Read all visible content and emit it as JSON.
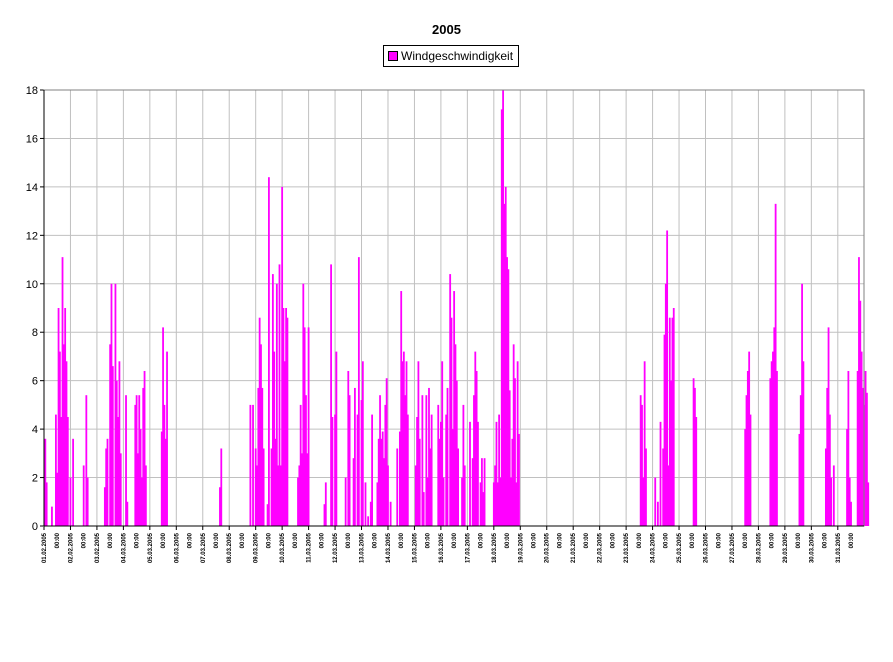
{
  "chart_data": {
    "type": "bar",
    "title": "2005",
    "series": [
      {
        "name": "Windgeschwindigkeit",
        "color": "#ff00ff",
        "points": [
          [
            0.05,
            3.6
          ],
          [
            0.1,
            1.8
          ],
          [
            0.3,
            0.8
          ],
          [
            0.45,
            4.6
          ],
          [
            0.5,
            2.2
          ],
          [
            0.55,
            9.0
          ],
          [
            0.6,
            7.2
          ],
          [
            0.65,
            4.5
          ],
          [
            0.7,
            11.1
          ],
          [
            0.75,
            7.5
          ],
          [
            0.8,
            9.0
          ],
          [
            0.85,
            6.8
          ],
          [
            0.9,
            4.5
          ],
          [
            1.0,
            2.0
          ],
          [
            1.1,
            3.6
          ],
          [
            1.5,
            2.5
          ],
          [
            1.6,
            5.4
          ],
          [
            1.65,
            2.0
          ],
          [
            2.3,
            1.6
          ],
          [
            2.35,
            3.2
          ],
          [
            2.4,
            3.6
          ],
          [
            2.5,
            7.5
          ],
          [
            2.55,
            10.0
          ],
          [
            2.6,
            6.6
          ],
          [
            2.7,
            10.0
          ],
          [
            2.75,
            6.0
          ],
          [
            2.8,
            4.5
          ],
          [
            2.85,
            6.8
          ],
          [
            2.9,
            3.0
          ],
          [
            3.1,
            5.4
          ],
          [
            3.15,
            1.0
          ],
          [
            3.45,
            5.0
          ],
          [
            3.5,
            5.4
          ],
          [
            3.55,
            3.0
          ],
          [
            3.6,
            5.4
          ],
          [
            3.65,
            4.0
          ],
          [
            3.7,
            2.0
          ],
          [
            3.75,
            5.7
          ],
          [
            3.8,
            6.4
          ],
          [
            3.85,
            2.5
          ],
          [
            4.45,
            3.9
          ],
          [
            4.5,
            8.2
          ],
          [
            4.55,
            5.0
          ],
          [
            4.6,
            3.6
          ],
          [
            4.65,
            7.2
          ],
          [
            6.65,
            1.6
          ],
          [
            6.7,
            3.2
          ],
          [
            7.8,
            5.0
          ],
          [
            7.9,
            5.0
          ],
          [
            8.0,
            3.2
          ],
          [
            8.05,
            2.5
          ],
          [
            8.1,
            5.7
          ],
          [
            8.15,
            8.6
          ],
          [
            8.2,
            7.5
          ],
          [
            8.25,
            5.7
          ],
          [
            8.3,
            3.2
          ],
          [
            8.45,
            0.9
          ],
          [
            8.5,
            14.4
          ],
          [
            8.6,
            3.2
          ],
          [
            8.65,
            10.4
          ],
          [
            8.7,
            7.2
          ],
          [
            8.75,
            3.6
          ],
          [
            8.8,
            10.0
          ],
          [
            8.85,
            2.5
          ],
          [
            8.9,
            10.8
          ],
          [
            8.95,
            2.5
          ],
          [
            9.0,
            14.0
          ],
          [
            9.05,
            9.0
          ],
          [
            9.1,
            6.8
          ],
          [
            9.15,
            9.0
          ],
          [
            9.2,
            8.6
          ],
          [
            9.6,
            2.0
          ],
          [
            9.65,
            2.5
          ],
          [
            9.7,
            5.0
          ],
          [
            9.75,
            3.0
          ],
          [
            9.8,
            10.0
          ],
          [
            9.85,
            8.2
          ],
          [
            9.9,
            5.4
          ],
          [
            9.95,
            3.0
          ],
          [
            10.0,
            8.2
          ],
          [
            10.6,
            0.9
          ],
          [
            10.65,
            1.8
          ],
          [
            10.85,
            10.8
          ],
          [
            10.9,
            4.5
          ],
          [
            11.0,
            4.6
          ],
          [
            11.05,
            7.2
          ],
          [
            11.4,
            2.0
          ],
          [
            11.5,
            6.4
          ],
          [
            11.55,
            5.4
          ],
          [
            11.7,
            2.8
          ],
          [
            11.75,
            5.7
          ],
          [
            11.85,
            4.6
          ],
          [
            11.9,
            11.1
          ],
          [
            12.0,
            5.2
          ],
          [
            12.05,
            6.8
          ],
          [
            12.15,
            1.8
          ],
          [
            12.25,
            0.4
          ],
          [
            12.35,
            1.0
          ],
          [
            12.4,
            4.6
          ],
          [
            12.6,
            1.8
          ],
          [
            12.65,
            3.6
          ],
          [
            12.7,
            5.4
          ],
          [
            12.75,
            3.6
          ],
          [
            12.8,
            3.9
          ],
          [
            12.85,
            2.8
          ],
          [
            12.9,
            5.0
          ],
          [
            12.95,
            6.1
          ],
          [
            13.0,
            2.5
          ],
          [
            13.1,
            1.0
          ],
          [
            13.35,
            3.2
          ],
          [
            13.45,
            3.9
          ],
          [
            13.5,
            9.7
          ],
          [
            13.55,
            6.8
          ],
          [
            13.6,
            7.2
          ],
          [
            13.65,
            5.4
          ],
          [
            13.7,
            6.8
          ],
          [
            13.75,
            4.6
          ],
          [
            14.05,
            2.5
          ],
          [
            14.1,
            4.5
          ],
          [
            14.15,
            6.8
          ],
          [
            14.2,
            3.6
          ],
          [
            14.3,
            5.4
          ],
          [
            14.35,
            1.4
          ],
          [
            14.45,
            5.4
          ],
          [
            14.5,
            2.0
          ],
          [
            14.55,
            5.7
          ],
          [
            14.6,
            3.2
          ],
          [
            14.65,
            4.6
          ],
          [
            14.9,
            5.0
          ],
          [
            14.95,
            3.6
          ],
          [
            15.0,
            4.3
          ],
          [
            15.05,
            6.8
          ],
          [
            15.1,
            2.0
          ],
          [
            15.2,
            4.6
          ],
          [
            15.25,
            5.7
          ],
          [
            15.35,
            10.4
          ],
          [
            15.4,
            8.6
          ],
          [
            15.45,
            4.0
          ],
          [
            15.5,
            9.7
          ],
          [
            15.55,
            7.5
          ],
          [
            15.6,
            6.0
          ],
          [
            15.65,
            3.2
          ],
          [
            15.8,
            2.0
          ],
          [
            15.85,
            5.0
          ],
          [
            15.9,
            2.5
          ],
          [
            16.1,
            4.3
          ],
          [
            16.2,
            2.8
          ],
          [
            16.25,
            5.4
          ],
          [
            16.3,
            7.2
          ],
          [
            16.35,
            6.4
          ],
          [
            16.4,
            4.3
          ],
          [
            16.5,
            1.8
          ],
          [
            16.55,
            2.8
          ],
          [
            16.6,
            1.4
          ],
          [
            16.65,
            2.8
          ],
          [
            17.0,
            1.8
          ],
          [
            17.05,
            2.5
          ],
          [
            17.1,
            4.3
          ],
          [
            17.15,
            1.8
          ],
          [
            17.2,
            4.6
          ],
          [
            17.25,
            2.0
          ],
          [
            17.3,
            17.2
          ],
          [
            17.35,
            18.0
          ],
          [
            17.4,
            13.3
          ],
          [
            17.45,
            14.0
          ],
          [
            17.5,
            11.1
          ],
          [
            17.55,
            10.6
          ],
          [
            17.6,
            5.6
          ],
          [
            17.65,
            2.0
          ],
          [
            17.7,
            3.6
          ],
          [
            17.75,
            7.5
          ],
          [
            17.8,
            6.1
          ],
          [
            17.85,
            1.8
          ],
          [
            17.9,
            6.8
          ],
          [
            17.95,
            3.8
          ],
          [
            22.55,
            5.4
          ],
          [
            22.6,
            5.0
          ],
          [
            22.65,
            2.0
          ],
          [
            22.7,
            6.8
          ],
          [
            22.75,
            3.2
          ],
          [
            23.1,
            2.0
          ],
          [
            23.2,
            1.0
          ],
          [
            23.3,
            4.3
          ],
          [
            23.4,
            3.2
          ],
          [
            23.45,
            7.9
          ],
          [
            23.5,
            10.0
          ],
          [
            23.55,
            12.2
          ],
          [
            23.6,
            2.5
          ],
          [
            23.65,
            8.6
          ],
          [
            23.7,
            6.0
          ],
          [
            23.75,
            8.6
          ],
          [
            23.8,
            9.0
          ],
          [
            24.55,
            6.1
          ],
          [
            24.6,
            5.7
          ],
          [
            24.65,
            4.5
          ],
          [
            26.5,
            4.0
          ],
          [
            26.55,
            5.4
          ],
          [
            26.6,
            6.4
          ],
          [
            26.65,
            7.2
          ],
          [
            26.7,
            4.6
          ],
          [
            27.45,
            6.1
          ],
          [
            27.5,
            6.8
          ],
          [
            27.55,
            7.2
          ],
          [
            27.6,
            8.2
          ],
          [
            27.65,
            13.3
          ],
          [
            27.7,
            6.4
          ],
          [
            28.55,
            3.8
          ],
          [
            28.6,
            5.4
          ],
          [
            28.65,
            10.0
          ],
          [
            28.7,
            6.8
          ],
          [
            29.55,
            3.2
          ],
          [
            29.6,
            5.7
          ],
          [
            29.65,
            8.2
          ],
          [
            29.7,
            4.6
          ],
          [
            29.75,
            2.0
          ],
          [
            29.85,
            2.5
          ],
          [
            30.35,
            4.0
          ],
          [
            30.4,
            6.4
          ],
          [
            30.45,
            2.0
          ],
          [
            30.5,
            1.0
          ],
          [
            30.75,
            6.4
          ],
          [
            30.8,
            11.1
          ],
          [
            30.85,
            9.3
          ],
          [
            30.9,
            7.2
          ],
          [
            30.95,
            5.7
          ],
          [
            31.0,
            5.0
          ],
          [
            31.05,
            6.4
          ],
          [
            31.1,
            5.5
          ],
          [
            31.15,
            1.8
          ]
        ]
      }
    ],
    "x_ticks": [
      "01.02.2005 00:00",
      "02.02.2005 00:00",
      "03.02.2005 00:00",
      "04.03.2005 00:00",
      "05.03.2005 00:00",
      "06.03.2005 00:00",
      "07.03.2005 00:00",
      "08.03.2005 00:00",
      "09.03.2005 00:00",
      "10.03.2005 00:00",
      "11.03.2005 00:00",
      "12.03.2005 00:00",
      "13.03.2005 00:00",
      "14.03.2005 00:00",
      "15.03.2005 00:00",
      "16.03.2005 00:00",
      "17.03.2005 00:00",
      "18.03.2005 00:00",
      "19.03.2005 00:00",
      "20.03.2005 00:00",
      "21.03.2005 00:00",
      "22.03.2005 00:00",
      "23.03.2005 00:00",
      "24.03.2005 00:00",
      "25.03.2005 00:00",
      "26.03.2005 00:00",
      "27.03.2005 00:00",
      "28.03.2005 00:00",
      "29.03.2005 00:00",
      "30.03.2005 00:00",
      "31.03.2005 00:00"
    ],
    "y_ticks": [
      0,
      2,
      4,
      6,
      8,
      10,
      12,
      14,
      16,
      18
    ],
    "ylim": [
      0,
      18
    ],
    "grid": true,
    "legend_position": "top-center"
  }
}
